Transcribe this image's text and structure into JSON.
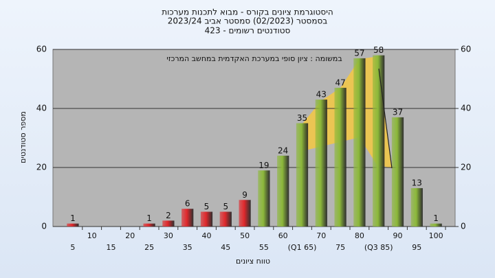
{
  "chart_data": {
    "type": "bar",
    "title": "היסטוגרמת ציונים בקורס - מבוא לתכנות מערכות",
    "subtitle": "בסמסטר  (02/2023)  סמסטר אביב 2023/24",
    "subtitle2": "סטודנטים רשומים - 423",
    "annotation": "במשומה : ציון סופי במערכת האקדמית במחשב המרכזי",
    "x_label": "טווח ציונים",
    "y_label": "מספר סטודנטים",
    "categories": [
      "5",
      "10",
      "15",
      "20",
      "25",
      "30",
      "35",
      "40",
      "45",
      "50",
      "55",
      "60",
      "(Q1 65)",
      "70",
      "75",
      "80",
      "(Q3 85)",
      "90",
      "95",
      "100"
    ],
    "values": [
      1,
      0,
      0,
      0,
      1,
      2,
      6,
      5,
      5,
      9,
      19,
      24,
      35,
      43,
      47,
      57,
      58,
      37,
      13,
      1
    ],
    "colors": [
      "#e0282c",
      "#e0282c",
      "#e0282c",
      "#e0282c",
      "#e0282c",
      "#e0282c",
      "#e0282c",
      "#e0282c",
      "#e0282c",
      "#e0282c",
      "#8cb83a",
      "#8cb83a",
      "#8cb83a",
      "#8cb83a",
      "#8cb83a",
      "#8cb83a",
      "#8cb83a",
      "#8cb83a",
      "#8cb83a",
      "#8cb83a"
    ],
    "ylim": [
      0,
      60
    ],
    "yticks": [
      0,
      20,
      40,
      60
    ],
    "y2lim": [
      0,
      60
    ],
    "y2ticks": [
      0,
      20,
      40,
      60
    ],
    "grid": true
  }
}
